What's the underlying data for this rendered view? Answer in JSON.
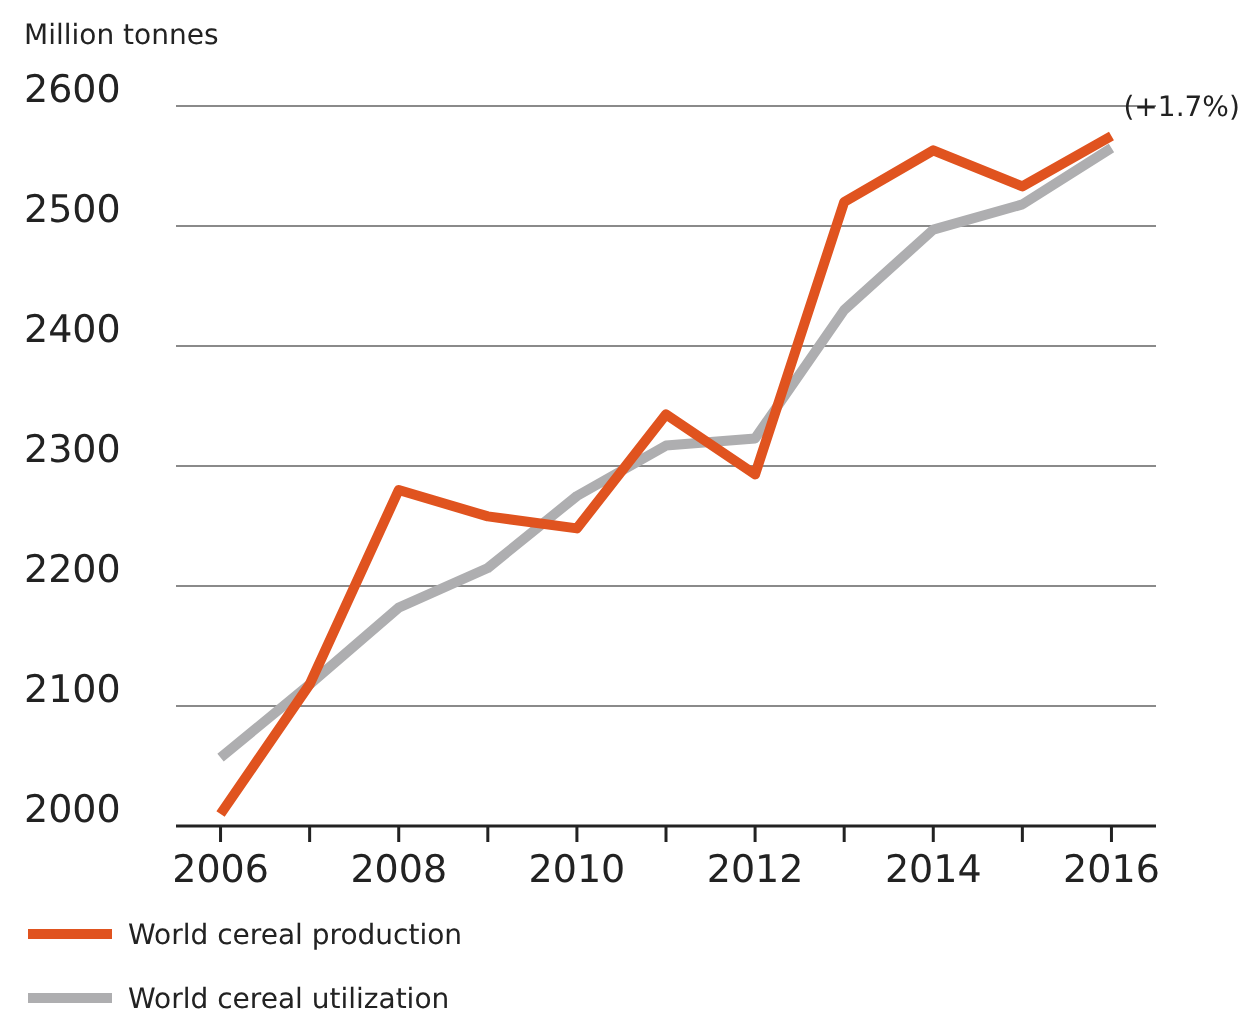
{
  "chart_data": {
    "type": "line",
    "ylabel": "Million tonnes",
    "x": [
      2006,
      2007,
      2008,
      2009,
      2010,
      2011,
      2012,
      2013,
      2014,
      2015,
      2016
    ],
    "series": [
      {
        "name": "World cereal production",
        "color": "#e0531f",
        "values": [
          2010,
          2118,
          2280,
          2258,
          2248,
          2343,
          2293,
          2520,
          2563,
          2533,
          2575
        ]
      },
      {
        "name": "World cereal utilization",
        "color": "#aeaeb0",
        "values": [
          2057,
          2118,
          2182,
          2215,
          2275,
          2317,
          2323,
          2430,
          2497,
          2518,
          2565
        ]
      }
    ],
    "xlim": [
      2005.5,
      2016.5
    ],
    "xticks": [
      2006,
      {
        "value": 2007,
        "label": null
      },
      2008,
      {
        "value": 2009,
        "label": null
      },
      2010,
      {
        "value": 2011,
        "label": null
      },
      2012,
      {
        "value": 2013,
        "label": null
      },
      2014,
      {
        "value": 2015,
        "label": null
      },
      2016
    ],
    "ylim": [
      2000,
      2600
    ],
    "yticks": [
      2000,
      2100,
      2200,
      2300,
      2400,
      2500,
      2600
    ],
    "grid": "y",
    "legend": "bottom",
    "marker": "none",
    "line_style": "solid",
    "annotations": [
      {
        "text": "(+1.7%)",
        "x": 2016,
        "y": 2575
      }
    ]
  }
}
